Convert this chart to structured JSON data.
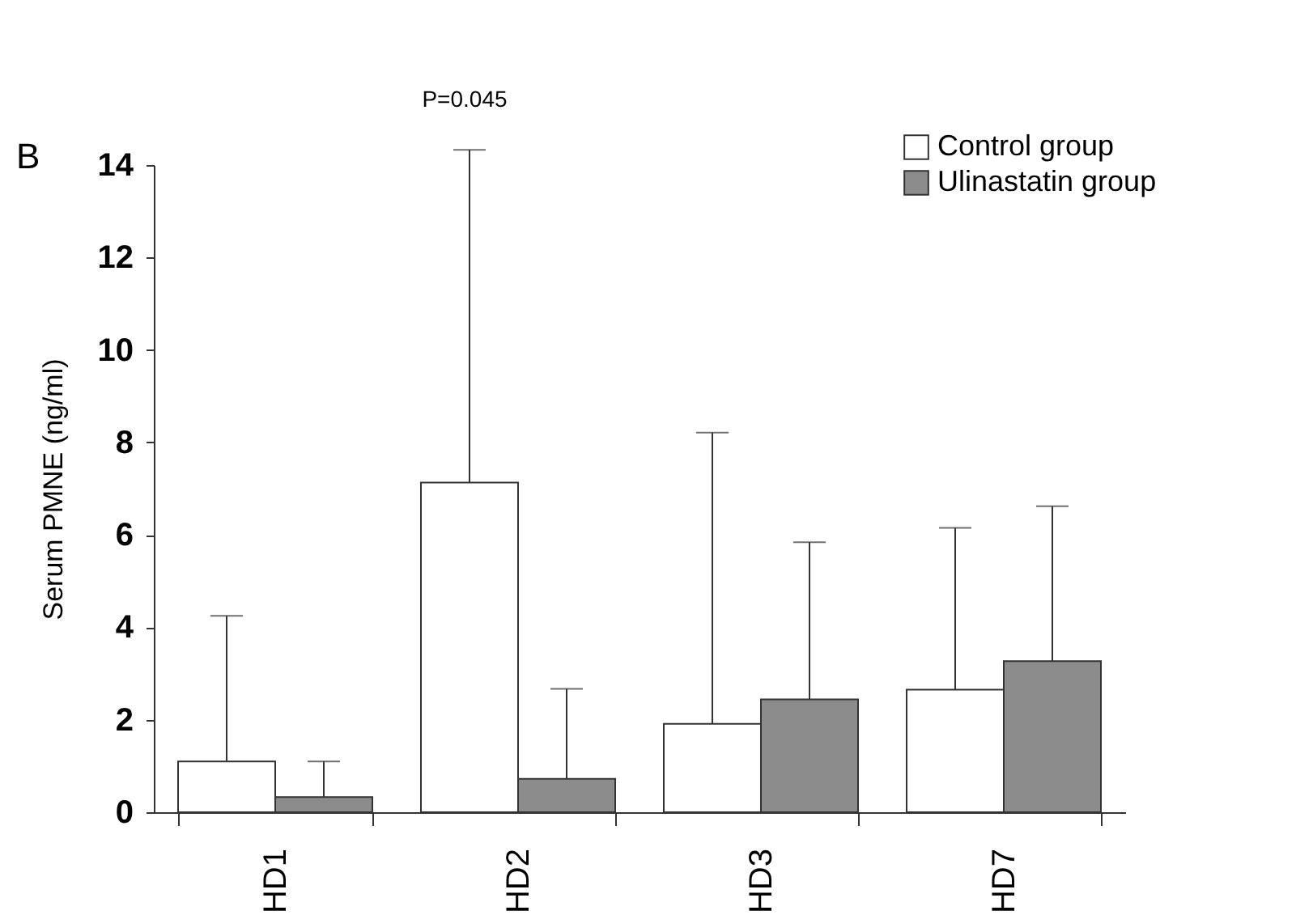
{
  "chart_data": {
    "type": "bar",
    "ylabel": "Serum PMNE (ng/ml)",
    "categories": [
      "HD1",
      "HD2",
      "HD3",
      "HD7"
    ],
    "series": [
      {
        "name": "Control group",
        "color": "#ffffff",
        "values": [
          1.1,
          7.13,
          1.91,
          2.65
        ],
        "errors": [
          [
            1.1,
            4.25
          ],
          [
            7.13,
            14.33
          ],
          [
            1.91,
            8.21
          ],
          [
            2.65,
            6.15
          ]
        ]
      },
      {
        "name": "Ulinastatin group",
        "color": "#8c8c8c",
        "values": [
          0.33,
          0.72,
          2.44,
          3.27
        ],
        "errors": [
          [
            0.33,
            1.1
          ],
          [
            0.72,
            2.67
          ],
          [
            2.44,
            5.84
          ],
          [
            3.27,
            6.62
          ]
        ]
      }
    ],
    "ylim": [
      0,
      14
    ],
    "yticks": [
      0,
      2,
      4,
      6,
      8,
      10,
      12,
      14
    ],
    "grid": false,
    "legend": "top right",
    "annotations": [
      "B",
      "P=0.045"
    ]
  }
}
